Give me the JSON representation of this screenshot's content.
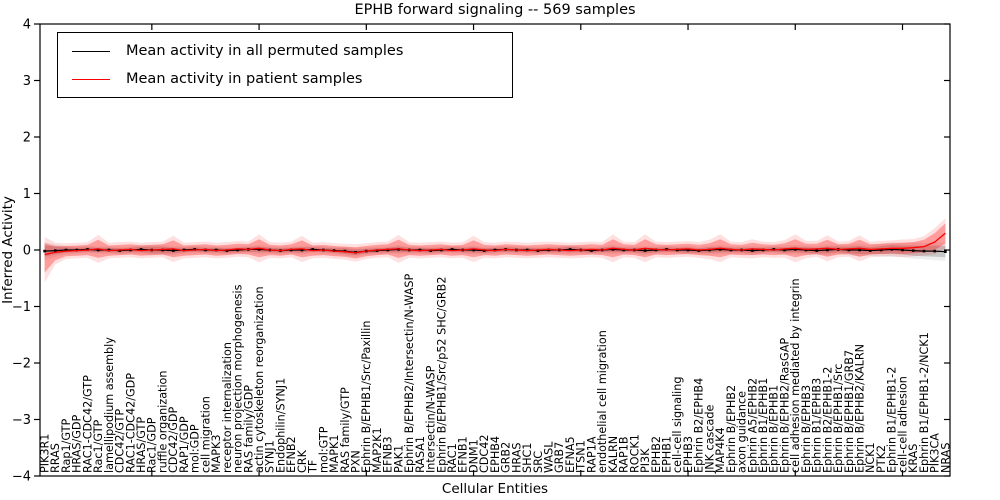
{
  "figure": {
    "title": "EPHB forward signaling -- 569 samples",
    "xlabel": "Cellular Entities",
    "ylabel": "Inferred Activity",
    "background_color": "#ffffff",
    "frame_color": "#000000"
  },
  "legend": {
    "position": "upper left",
    "entries": [
      {
        "label": "Mean activity in all permuted samples",
        "color": "#000000"
      },
      {
        "label": "Mean activity in patient samples",
        "color": "#ff0000"
      }
    ]
  },
  "chart_data": {
    "type": "line",
    "title": "EPHB forward signaling -- 569 samples",
    "xlabel": "Cellular Entities",
    "ylabel": "Inferred Activity",
    "ylim": [
      -4,
      4
    ],
    "grid": false,
    "legend_position": "upper left",
    "y_tick_labels": [
      "4",
      "3",
      "2",
      "1",
      "0",
      "−1",
      "−2",
      "−3",
      "−4"
    ],
    "y_tick_values": [
      4,
      3,
      2,
      1,
      0,
      -1,
      -2,
      -3,
      -4
    ],
    "categories": [
      "PIK3R1",
      "RRAS",
      "Rap1/GTP",
      "HRAS/GDP",
      "RAC1-CDC42/GTP",
      "Rac1/GTP",
      "lamellipodium assembly",
      "CDC42/GTP",
      "RAC1-CDC42/GDP",
      "HRAS/GTP",
      "Rac1/GDP",
      "ruffle organization",
      "CDC42/GDP",
      "RAP1/GDP",
      "mol:GDP",
      "cell migration",
      "MAPK3",
      "receptor internalization",
      "neuron projection morphogenesis",
      "RAS family/GDP",
      "actin cytoskeleton reorganization",
      "SYNJ1",
      "Endophilin/SYNJ1",
      "EFNB2",
      "CRK",
      "TF",
      "mol:GTP",
      "MAPK1",
      "RAS family/GTP",
      "PXN",
      "Ephrin B/EPHB1/Src/Paxillin",
      "MAP2K1",
      "EFNB3",
      "PAK1",
      "Ephrin B/EPHB2/Intersectin/N-WASP",
      "RASA1",
      "Intersectin/N-WASP",
      "Ephrin B/EPHB1/Src/p52 SHC/GRB2",
      "RAC1",
      "EFNB1",
      "DNM1",
      "CDC42",
      "EPHB4",
      "GRB2",
      "HRAS",
      "SHC1",
      "SRC",
      "WASL",
      "GRB7",
      "EFNA5",
      "ITSN1",
      "RAP1A",
      "endothelial cell migration",
      "KALRN",
      "RAP1B",
      "ROCK1",
      "PI3K",
      "EPHB2",
      "EPHB1",
      "cell-cell signaling",
      "EPHB3",
      "Ephrin B2/EPHB4",
      "JNK cascade",
      "MAP4K4",
      "Ephrin B/EPHB2",
      "axon guidance",
      "Ephrin A5/EPHB2",
      "Ephrin B1/EPHB1",
      "Ephrin B/EPHB1",
      "Ephrin B/EPHB2/RasGAP",
      "cell adhesion mediated by integrin",
      "Ephrin B/EPHB3",
      "Ephrin B1/EPHB3",
      "Ephrin B2/EPHB1-2",
      "Ephrin B/EPHB1/Src",
      "Ephrin B/EPHB1/GRB7",
      "Ephrin B/EPHB2/KALRN",
      "NCK1",
      "PTK2",
      "Ephrin B1/EPHB1-2",
      "cell-cell adhesion",
      "KRAS",
      "Ephrin B1/EPHB1-2/NCK1",
      "PIK3CA",
      "NRAS"
    ],
    "series": [
      {
        "name": "Mean activity in all permuted samples",
        "color": "#000000",
        "band_color": "#000000",
        "values": [
          -0.02,
          -0.01,
          0.0,
          0.0,
          0.01,
          0.0,
          0.0,
          -0.01,
          0.0,
          0.01,
          0.0,
          0.0,
          -0.01,
          0.0,
          0.01,
          0.0,
          0.0,
          -0.01,
          0.0,
          0.01,
          0.01,
          0.0,
          -0.01,
          0.0,
          0.0,
          0.01,
          0.0,
          -0.01,
          -0.02,
          -0.04,
          -0.02,
          -0.01,
          0.0,
          0.01,
          0.0,
          0.0,
          -0.01,
          0.0,
          0.01,
          0.0,
          0.0,
          -0.01,
          0.0,
          0.01,
          0.0,
          0.0,
          -0.01,
          0.0,
          0.0,
          0.01,
          0.0,
          -0.01,
          0.0,
          0.01,
          0.0,
          0.0,
          -0.01,
          0.0,
          0.01,
          0.0,
          0.0,
          -0.01,
          0.0,
          0.01,
          0.0,
          0.0,
          -0.01,
          0.0,
          0.01,
          0.0,
          0.01,
          0.0,
          -0.01,
          0.0,
          0.01,
          0.0,
          0.0,
          -0.01,
          0.0,
          0.01,
          0.0,
          -0.01,
          -0.02,
          -0.02,
          -0.03
        ],
        "band_halfwidth": [
          0.1,
          0.07,
          0.05,
          0.04,
          0.04,
          0.04,
          0.04,
          0.04,
          0.04,
          0.05,
          0.06,
          0.06,
          0.05,
          0.04,
          0.04,
          0.04,
          0.04,
          0.04,
          0.04,
          0.04,
          0.05,
          0.04,
          0.04,
          0.04,
          0.05,
          0.04,
          0.04,
          0.04,
          0.05,
          0.05,
          0.04,
          0.04,
          0.04,
          0.05,
          0.04,
          0.04,
          0.04,
          0.04,
          0.04,
          0.04,
          0.05,
          0.04,
          0.04,
          0.04,
          0.04,
          0.04,
          0.04,
          0.04,
          0.04,
          0.05,
          0.04,
          0.04,
          0.04,
          0.05,
          0.04,
          0.04,
          0.05,
          0.04,
          0.04,
          0.04,
          0.05,
          0.04,
          0.05,
          0.05,
          0.04,
          0.04,
          0.05,
          0.04,
          0.04,
          0.05,
          0.05,
          0.05,
          0.05,
          0.06,
          0.05,
          0.06,
          0.07,
          0.06,
          0.07,
          0.08,
          0.08,
          0.09,
          0.09,
          0.1,
          0.1
        ]
      },
      {
        "name": "Mean activity in patient samples",
        "color": "#ff0000",
        "band_color": "#ff0000",
        "values": [
          -0.08,
          -0.04,
          -0.02,
          -0.01,
          0.0,
          0.02,
          -0.01,
          0.0,
          0.01,
          -0.01,
          0.0,
          0.01,
          0.02,
          -0.01,
          0.0,
          0.01,
          -0.01,
          0.0,
          0.02,
          0.01,
          0.03,
          0.0,
          -0.01,
          0.01,
          0.02,
          -0.01,
          0.0,
          -0.02,
          -0.03,
          -0.05,
          -0.02,
          0.0,
          0.01,
          0.02,
          0.0,
          -0.01,
          0.0,
          0.01,
          -0.01,
          0.0,
          0.02,
          0.0,
          -0.01,
          0.01,
          0.0,
          -0.01,
          0.0,
          0.01,
          0.0,
          -0.01,
          0.0,
          0.01,
          0.0,
          0.03,
          0.01,
          0.0,
          0.03,
          0.01,
          0.0,
          0.01,
          0.02,
          0.0,
          0.01,
          0.03,
          0.01,
          0.0,
          0.02,
          0.01,
          0.0,
          0.02,
          0.03,
          0.01,
          0.02,
          0.03,
          0.01,
          0.02,
          0.03,
          0.01,
          0.02,
          0.03,
          0.03,
          0.04,
          0.06,
          0.14,
          0.3
        ],
        "band_upper": [
          0.12,
          0.07,
          0.07,
          0.08,
          0.09,
          0.18,
          0.08,
          0.09,
          0.1,
          0.08,
          0.09,
          0.1,
          0.17,
          0.08,
          0.09,
          0.1,
          0.08,
          0.09,
          0.11,
          0.1,
          0.19,
          0.09,
          0.08,
          0.1,
          0.17,
          0.08,
          0.09,
          0.07,
          0.06,
          0.05,
          0.07,
          0.09,
          0.1,
          0.18,
          0.09,
          0.08,
          0.09,
          0.1,
          0.08,
          0.09,
          0.17,
          0.09,
          0.08,
          0.1,
          0.09,
          0.08,
          0.09,
          0.1,
          0.09,
          0.08,
          0.09,
          0.1,
          0.09,
          0.19,
          0.1,
          0.09,
          0.19,
          0.1,
          0.09,
          0.1,
          0.11,
          0.09,
          0.12,
          0.19,
          0.1,
          0.09,
          0.13,
          0.1,
          0.09,
          0.12,
          0.19,
          0.11,
          0.11,
          0.18,
          0.1,
          0.11,
          0.18,
          0.1,
          0.11,
          0.12,
          0.13,
          0.14,
          0.18,
          0.3,
          0.47
        ],
        "band_lower": [
          -0.4,
          -0.18,
          -0.11,
          -0.1,
          -0.09,
          -0.14,
          -0.1,
          -0.09,
          -0.08,
          -0.1,
          -0.09,
          -0.08,
          -0.13,
          -0.1,
          -0.09,
          -0.08,
          -0.1,
          -0.09,
          -0.07,
          -0.08,
          -0.13,
          -0.09,
          -0.1,
          -0.08,
          -0.13,
          -0.1,
          -0.09,
          -0.11,
          -0.12,
          -0.15,
          -0.11,
          -0.09,
          -0.08,
          -0.14,
          -0.09,
          -0.1,
          -0.09,
          -0.08,
          -0.1,
          -0.09,
          -0.13,
          -0.09,
          -0.1,
          -0.08,
          -0.09,
          -0.1,
          -0.09,
          -0.08,
          -0.09,
          -0.1,
          -0.09,
          -0.08,
          -0.09,
          -0.13,
          -0.08,
          -0.09,
          -0.13,
          -0.08,
          -0.09,
          -0.08,
          -0.07,
          -0.09,
          -0.1,
          -0.13,
          -0.08,
          -0.09,
          -0.09,
          -0.08,
          -0.09,
          -0.08,
          -0.13,
          -0.09,
          -0.07,
          -0.12,
          -0.08,
          -0.07,
          -0.12,
          -0.08,
          -0.07,
          -0.06,
          -0.07,
          -0.06,
          -0.04,
          0.0,
          0.12
        ]
      }
    ]
  }
}
